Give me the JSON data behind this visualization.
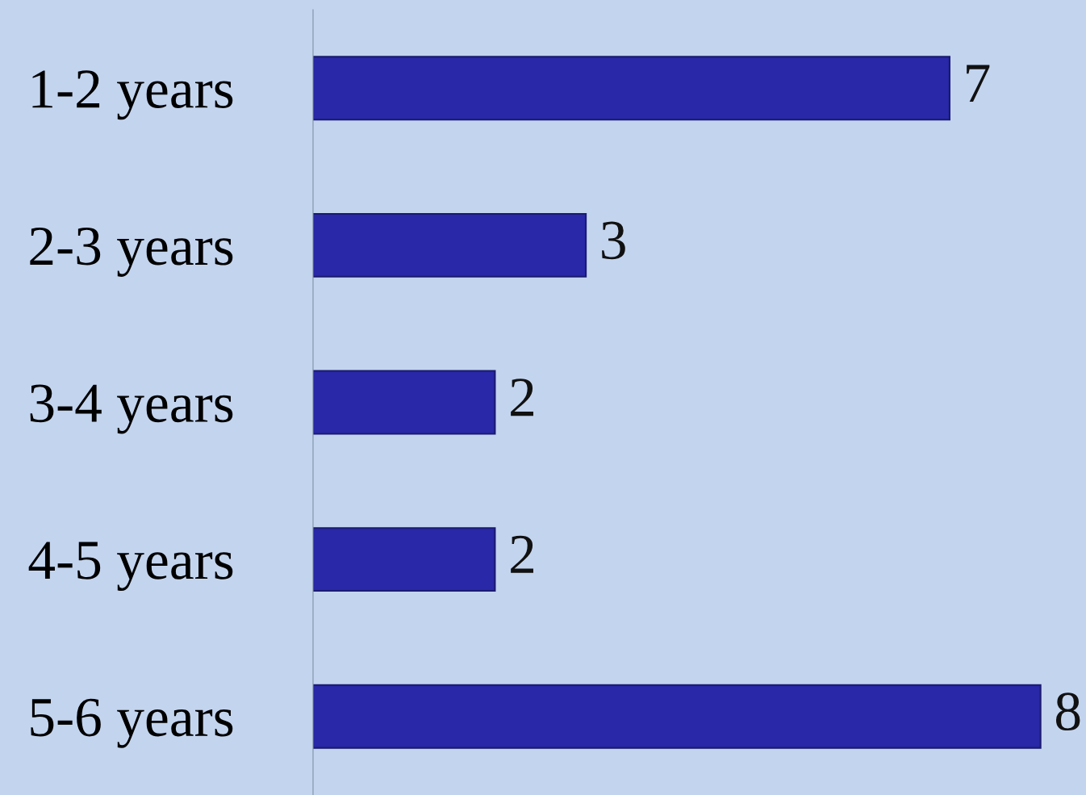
{
  "chart_data": {
    "type": "bar",
    "orientation": "horizontal",
    "categories": [
      "1-2 years",
      "2-3 years",
      "3-4 years",
      "4-5 years",
      "5-6 years"
    ],
    "values": [
      7,
      3,
      2,
      2,
      8
    ],
    "color": "#2828a8",
    "xlim": [
      0,
      8.5
    ],
    "data_labels": true,
    "tick_labels": "y",
    "grid": false,
    "legend": false
  }
}
